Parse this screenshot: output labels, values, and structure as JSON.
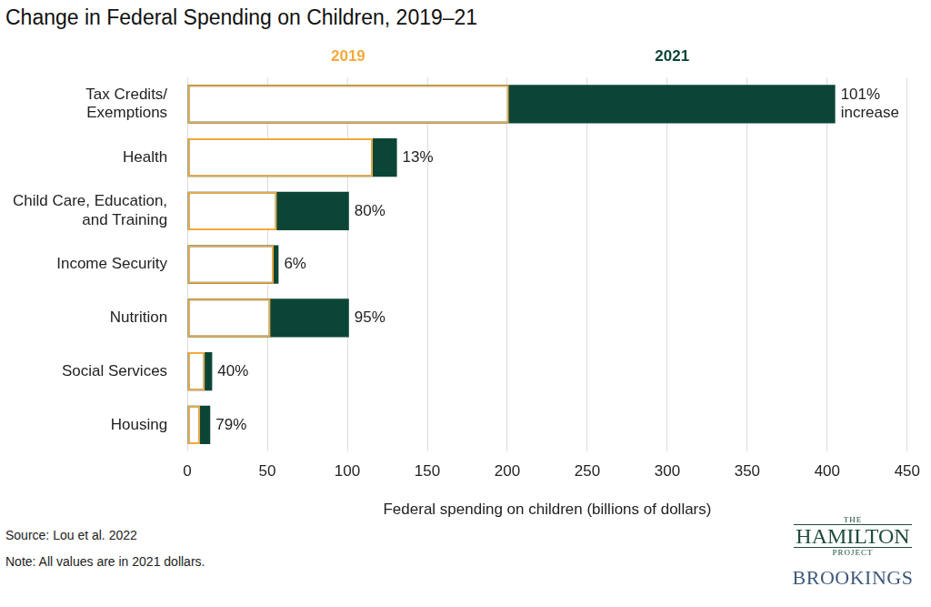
{
  "chart_data": {
    "type": "bar",
    "title": "Change in Federal Spending on Children, 2019–21",
    "orientation": "horizontal",
    "categories": [
      "Tax Credits/ Exemptions",
      "Health",
      "Child Care, Education, and Training",
      "Income Security",
      "Nutrition",
      "Social Services",
      "Housing"
    ],
    "series": [
      {
        "name": "2019",
        "color": "#f2a93b",
        "values": [
          201,
          116,
          56,
          54,
          52,
          11,
          8
        ]
      },
      {
        "name": "2021",
        "color": "#0b4536",
        "values": [
          405,
          131,
          101,
          57,
          101,
          15.5,
          14.3
        ]
      }
    ],
    "annotations": [
      "101% increase",
      "13%",
      "80%",
      "6%",
      "95%",
      "40%",
      "79%"
    ],
    "x_label": "Federal spending on children (billions of dollars)",
    "xlim": [
      0,
      450
    ],
    "xticks": [
      0,
      50,
      100,
      150,
      200,
      250,
      300,
      350,
      400,
      450
    ],
    "grid": true,
    "source": "Source: Lou et al. 2022",
    "note": "Note: All values are in 2021 dollars.",
    "logo": [
      "THE",
      "HAMILTON",
      "PROJECT",
      "BROOKINGS"
    ]
  }
}
